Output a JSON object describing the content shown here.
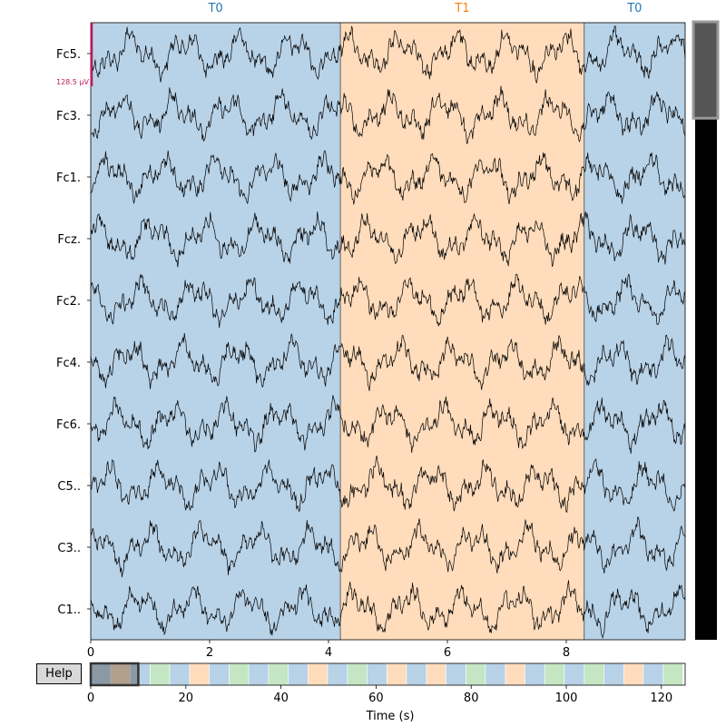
{
  "chart_data": {
    "type": "line",
    "title": "",
    "xlabel": "Time (s)",
    "ylabel": "",
    "xlim": [
      0,
      10
    ],
    "x_ticks": [
      0,
      2,
      4,
      6,
      8
    ],
    "channels": [
      "Fc5.",
      "Fc3.",
      "Fc1.",
      "Fcz.",
      "Fc2.",
      "Fc4.",
      "Fc6.",
      "C5..",
      "C3..",
      "C1.."
    ],
    "scale_bar": {
      "label": "128.5 µV",
      "color": "#c2185b"
    },
    "annotations": [
      {
        "label": "T0",
        "onset": 0.0,
        "end": 4.2,
        "fill": "#b8d2e7",
        "text_color": "#1f77b4"
      },
      {
        "label": "T1",
        "onset": 4.2,
        "end": 8.3,
        "fill": "#ffdcbb",
        "text_color": "#ff7f0e"
      },
      {
        "label": "T0",
        "onset": 8.3,
        "end": 10.0,
        "fill": "#b8d2e7",
        "text_color": "#1f77b4"
      }
    ],
    "overview": {
      "xlim": [
        0,
        125
      ],
      "x_ticks": [
        0,
        20,
        40,
        60,
        80,
        100,
        120
      ],
      "view_window": [
        0,
        10
      ],
      "segments": [
        {
          "start": 0,
          "end": 4.2,
          "label": "T0"
        },
        {
          "start": 4.2,
          "end": 8.3,
          "label": "T1"
        },
        {
          "start": 8.3,
          "end": 12.5,
          "label": "T0"
        },
        {
          "start": 12.5,
          "end": 16.6,
          "label": "T2"
        },
        {
          "start": 16.6,
          "end": 20.8,
          "label": "T0"
        },
        {
          "start": 20.8,
          "end": 24.9,
          "label": "T1"
        },
        {
          "start": 24.9,
          "end": 29.1,
          "label": "T0"
        },
        {
          "start": 29.1,
          "end": 33.2,
          "label": "T2"
        },
        {
          "start": 33.2,
          "end": 37.4,
          "label": "T0"
        },
        {
          "start": 37.4,
          "end": 41.5,
          "label": "T2"
        },
        {
          "start": 41.5,
          "end": 45.7,
          "label": "T0"
        },
        {
          "start": 45.7,
          "end": 49.8,
          "label": "T1"
        },
        {
          "start": 49.8,
          "end": 54.0,
          "label": "T0"
        },
        {
          "start": 54.0,
          "end": 58.1,
          "label": "T2"
        },
        {
          "start": 58.1,
          "end": 62.3,
          "label": "T0"
        },
        {
          "start": 62.3,
          "end": 66.4,
          "label": "T1"
        },
        {
          "start": 66.4,
          "end": 70.6,
          "label": "T0"
        },
        {
          "start": 70.6,
          "end": 74.7,
          "label": "T1"
        },
        {
          "start": 74.7,
          "end": 78.9,
          "label": "T0"
        },
        {
          "start": 78.9,
          "end": 83.0,
          "label": "T2"
        },
        {
          "start": 83.0,
          "end": 87.2,
          "label": "T0"
        },
        {
          "start": 87.2,
          "end": 91.3,
          "label": "T1"
        },
        {
          "start": 91.3,
          "end": 95.5,
          "label": "T0"
        },
        {
          "start": 95.5,
          "end": 99.6,
          "label": "T2"
        },
        {
          "start": 99.6,
          "end": 103.8,
          "label": "T0"
        },
        {
          "start": 103.8,
          "end": 107.9,
          "label": "T2"
        },
        {
          "start": 107.9,
          "end": 112.1,
          "label": "T0"
        },
        {
          "start": 112.1,
          "end": 116.2,
          "label": "T1"
        },
        {
          "start": 116.2,
          "end": 120.4,
          "label": "T0"
        },
        {
          "start": 120.4,
          "end": 124.5,
          "label": "T2"
        }
      ],
      "segment_colors": {
        "T0": "#b8d2e7",
        "T1": "#ffdcbb",
        "T2": "#c4e6c3"
      }
    },
    "channel_scroll": {
      "total_channels": 64,
      "visible_start": 0,
      "visible_count": 10
    }
  },
  "controls": {
    "help_label": "Help"
  }
}
